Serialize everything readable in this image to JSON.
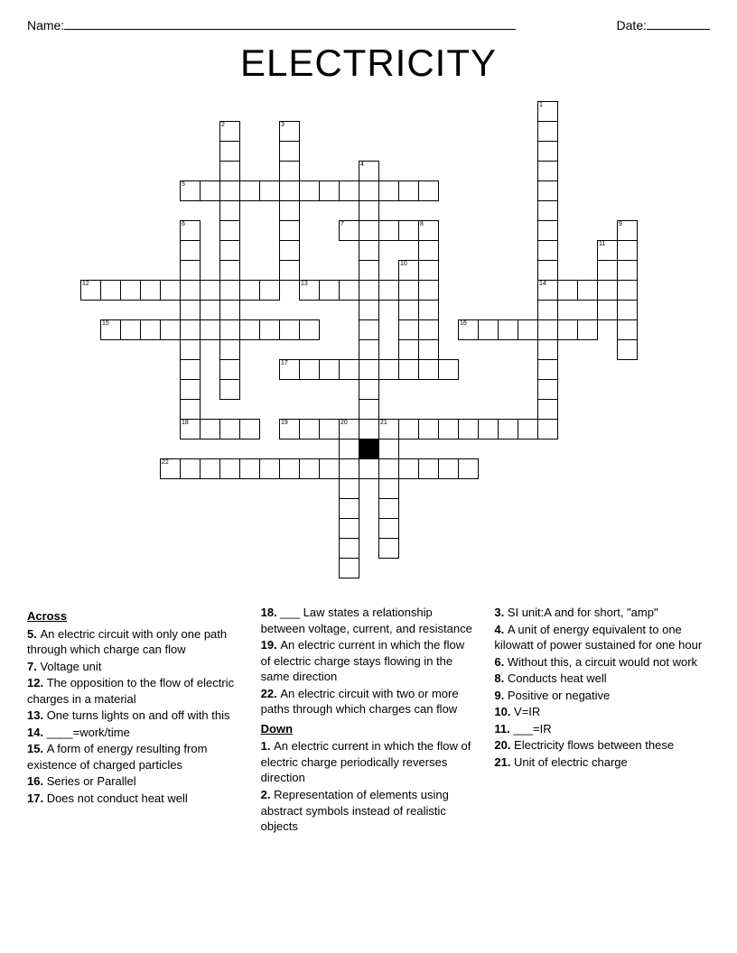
{
  "header": {
    "name_label": "Name:",
    "date_label": "Date:",
    "name_line_width": 500,
    "date_line_width": 70
  },
  "title": "ELECTRICITY",
  "grid": {
    "cell_size": 22,
    "cols": 31,
    "rows": 24,
    "cells": [
      {
        "r": 0,
        "c": 24,
        "n": "1"
      },
      {
        "r": 1,
        "c": 8,
        "n": "2"
      },
      {
        "r": 1,
        "c": 11,
        "n": "3"
      },
      {
        "r": 1,
        "c": 24
      },
      {
        "r": 2,
        "c": 8
      },
      {
        "r": 2,
        "c": 11
      },
      {
        "r": 2,
        "c": 24
      },
      {
        "r": 3,
        "c": 8
      },
      {
        "r": 3,
        "c": 11
      },
      {
        "r": 3,
        "c": 15,
        "n": "4"
      },
      {
        "r": 3,
        "c": 24
      },
      {
        "r": 4,
        "c": 6,
        "n": "5"
      },
      {
        "r": 4,
        "c": 7
      },
      {
        "r": 4,
        "c": 8
      },
      {
        "r": 4,
        "c": 9
      },
      {
        "r": 4,
        "c": 10
      },
      {
        "r": 4,
        "c": 11
      },
      {
        "r": 4,
        "c": 12
      },
      {
        "r": 4,
        "c": 13
      },
      {
        "r": 4,
        "c": 14
      },
      {
        "r": 4,
        "c": 15
      },
      {
        "r": 4,
        "c": 16
      },
      {
        "r": 4,
        "c": 17
      },
      {
        "r": 4,
        "c": 18
      },
      {
        "r": 4,
        "c": 24
      },
      {
        "r": 5,
        "c": 8
      },
      {
        "r": 5,
        "c": 11
      },
      {
        "r": 5,
        "c": 15
      },
      {
        "r": 5,
        "c": 24
      },
      {
        "r": 6,
        "c": 6,
        "n": "6"
      },
      {
        "r": 6,
        "c": 8
      },
      {
        "r": 6,
        "c": 11
      },
      {
        "r": 6,
        "c": 14,
        "n": "7"
      },
      {
        "r": 6,
        "c": 15
      },
      {
        "r": 6,
        "c": 16
      },
      {
        "r": 6,
        "c": 17
      },
      {
        "r": 6,
        "c": 18,
        "n": "8"
      },
      {
        "r": 6,
        "c": 24
      },
      {
        "r": 6,
        "c": 28,
        "n": "9"
      },
      {
        "r": 7,
        "c": 6
      },
      {
        "r": 7,
        "c": 8
      },
      {
        "r": 7,
        "c": 11
      },
      {
        "r": 7,
        "c": 15
      },
      {
        "r": 7,
        "c": 18
      },
      {
        "r": 7,
        "c": 24
      },
      {
        "r": 7,
        "c": 27,
        "n": "11"
      },
      {
        "r": 7,
        "c": 28
      },
      {
        "r": 8,
        "c": 6
      },
      {
        "r": 8,
        "c": 8
      },
      {
        "r": 8,
        "c": 11
      },
      {
        "r": 8,
        "c": 15
      },
      {
        "r": 8,
        "c": 17,
        "n": "10"
      },
      {
        "r": 8,
        "c": 18
      },
      {
        "r": 8,
        "c": 24
      },
      {
        "r": 8,
        "c": 27
      },
      {
        "r": 8,
        "c": 28
      },
      {
        "r": 9,
        "c": 1,
        "n": "12"
      },
      {
        "r": 9,
        "c": 2
      },
      {
        "r": 9,
        "c": 3
      },
      {
        "r": 9,
        "c": 4
      },
      {
        "r": 9,
        "c": 5
      },
      {
        "r": 9,
        "c": 6
      },
      {
        "r": 9,
        "c": 7
      },
      {
        "r": 9,
        "c": 8
      },
      {
        "r": 9,
        "c": 9
      },
      {
        "r": 9,
        "c": 10
      },
      {
        "r": 9,
        "c": 12,
        "n": "13"
      },
      {
        "r": 9,
        "c": 13
      },
      {
        "r": 9,
        "c": 14
      },
      {
        "r": 9,
        "c": 15
      },
      {
        "r": 9,
        "c": 16
      },
      {
        "r": 9,
        "c": 17
      },
      {
        "r": 9,
        "c": 18
      },
      {
        "r": 9,
        "c": 24,
        "n": "14"
      },
      {
        "r": 9,
        "c": 25
      },
      {
        "r": 9,
        "c": 26
      },
      {
        "r": 9,
        "c": 27
      },
      {
        "r": 9,
        "c": 28
      },
      {
        "r": 10,
        "c": 6
      },
      {
        "r": 10,
        "c": 8
      },
      {
        "r": 10,
        "c": 15
      },
      {
        "r": 10,
        "c": 17
      },
      {
        "r": 10,
        "c": 18
      },
      {
        "r": 10,
        "c": 24
      },
      {
        "r": 10,
        "c": 27
      },
      {
        "r": 10,
        "c": 28
      },
      {
        "r": 11,
        "c": 2,
        "n": "15"
      },
      {
        "r": 11,
        "c": 3
      },
      {
        "r": 11,
        "c": 4
      },
      {
        "r": 11,
        "c": 5
      },
      {
        "r": 11,
        "c": 6
      },
      {
        "r": 11,
        "c": 7
      },
      {
        "r": 11,
        "c": 8
      },
      {
        "r": 11,
        "c": 9
      },
      {
        "r": 11,
        "c": 10
      },
      {
        "r": 11,
        "c": 11
      },
      {
        "r": 11,
        "c": 12
      },
      {
        "r": 11,
        "c": 15
      },
      {
        "r": 11,
        "c": 17
      },
      {
        "r": 11,
        "c": 18
      },
      {
        "r": 11,
        "c": 20,
        "n": "16"
      },
      {
        "r": 11,
        "c": 21
      },
      {
        "r": 11,
        "c": 22
      },
      {
        "r": 11,
        "c": 23
      },
      {
        "r": 11,
        "c": 24
      },
      {
        "r": 11,
        "c": 25
      },
      {
        "r": 11,
        "c": 26
      },
      {
        "r": 11,
        "c": 28
      },
      {
        "r": 12,
        "c": 6
      },
      {
        "r": 12,
        "c": 8
      },
      {
        "r": 12,
        "c": 15
      },
      {
        "r": 12,
        "c": 17
      },
      {
        "r": 12,
        "c": 18
      },
      {
        "r": 12,
        "c": 24
      },
      {
        "r": 12,
        "c": 28
      },
      {
        "r": 13,
        "c": 6
      },
      {
        "r": 13,
        "c": 8
      },
      {
        "r": 13,
        "c": 11,
        "n": "17"
      },
      {
        "r": 13,
        "c": 12
      },
      {
        "r": 13,
        "c": 13
      },
      {
        "r": 13,
        "c": 14
      },
      {
        "r": 13,
        "c": 15
      },
      {
        "r": 13,
        "c": 16
      },
      {
        "r": 13,
        "c": 17
      },
      {
        "r": 13,
        "c": 18
      },
      {
        "r": 13,
        "c": 19
      },
      {
        "r": 13,
        "c": 24
      },
      {
        "r": 14,
        "c": 6
      },
      {
        "r": 14,
        "c": 8
      },
      {
        "r": 14,
        "c": 15
      },
      {
        "r": 14,
        "c": 24
      },
      {
        "r": 15,
        "c": 6
      },
      {
        "r": 15,
        "c": 15
      },
      {
        "r": 15,
        "c": 24
      },
      {
        "r": 16,
        "c": 6,
        "n": "18"
      },
      {
        "r": 16,
        "c": 7
      },
      {
        "r": 16,
        "c": 8
      },
      {
        "r": 16,
        "c": 9
      },
      {
        "r": 16,
        "c": 11,
        "n": "19"
      },
      {
        "r": 16,
        "c": 12
      },
      {
        "r": 16,
        "c": 13
      },
      {
        "r": 16,
        "c": 14,
        "n": "20"
      },
      {
        "r": 16,
        "c": 15
      },
      {
        "r": 16,
        "c": 16,
        "n": "21"
      },
      {
        "r": 16,
        "c": 17
      },
      {
        "r": 16,
        "c": 18
      },
      {
        "r": 16,
        "c": 19
      },
      {
        "r": 16,
        "c": 20
      },
      {
        "r": 16,
        "c": 21
      },
      {
        "r": 16,
        "c": 22
      },
      {
        "r": 16,
        "c": 23
      },
      {
        "r": 16,
        "c": 24
      },
      {
        "r": 17,
        "c": 14
      },
      {
        "r": 17,
        "c": 15,
        "black": true
      },
      {
        "r": 17,
        "c": 16
      },
      {
        "r": 18,
        "c": 5,
        "n": "22"
      },
      {
        "r": 18,
        "c": 6
      },
      {
        "r": 18,
        "c": 7
      },
      {
        "r": 18,
        "c": 8
      },
      {
        "r": 18,
        "c": 9
      },
      {
        "r": 18,
        "c": 10
      },
      {
        "r": 18,
        "c": 11
      },
      {
        "r": 18,
        "c": 12
      },
      {
        "r": 18,
        "c": 13
      },
      {
        "r": 18,
        "c": 14
      },
      {
        "r": 18,
        "c": 15
      },
      {
        "r": 18,
        "c": 16
      },
      {
        "r": 18,
        "c": 17
      },
      {
        "r": 18,
        "c": 18
      },
      {
        "r": 18,
        "c": 19
      },
      {
        "r": 18,
        "c": 20
      },
      {
        "r": 19,
        "c": 14
      },
      {
        "r": 19,
        "c": 16
      },
      {
        "r": 20,
        "c": 14
      },
      {
        "r": 20,
        "c": 16
      },
      {
        "r": 21,
        "c": 14
      },
      {
        "r": 21,
        "c": 16
      },
      {
        "r": 22,
        "c": 14
      },
      {
        "r": 22,
        "c": 16
      },
      {
        "r": 23,
        "c": 14
      }
    ]
  },
  "clues": {
    "across_heading": "Across",
    "down_heading": "Down",
    "columns": [
      [
        {
          "type": "heading",
          "key": "across_heading"
        },
        {
          "n": "5.",
          "t": "An electric circuit with only one path through which charge can flow"
        },
        {
          "n": "7.",
          "t": "Voltage unit"
        },
        {
          "n": "12.",
          "t": "The opposition to the flow of electric charges in a material"
        },
        {
          "n": "13.",
          "t": "One turns lights on and off with this"
        },
        {
          "n": "14.",
          "t": "____=work/time"
        },
        {
          "n": "15.",
          "t": "A form of energy resulting from existence of charged particles"
        },
        {
          "n": "16.",
          "t": "Series or Parallel"
        },
        {
          "n": "17.",
          "t": "Does not conduct heat well"
        }
      ],
      [
        {
          "n": "18.",
          "t": "___ Law states a relationship between voltage, current, and resistance"
        },
        {
          "n": "19.",
          "t": "An electric current in which the flow of electric charge stays flowing in the same direction"
        },
        {
          "n": "22.",
          "t": "An electric circuit with two or more paths through which charges can flow"
        },
        {
          "type": "heading",
          "key": "down_heading"
        },
        {
          "n": "1.",
          "t": "An electric current in which the flow of electric charge periodically reverses direction"
        },
        {
          "n": "2.",
          "t": "Representation of elements using abstract symbols instead of realistic objects"
        }
      ],
      [
        {
          "n": "3.",
          "t": "SI unit:A and for short, \"amp\""
        },
        {
          "n": "4.",
          "t": "A unit of energy equivalent to one kilowatt of power sustained for one hour"
        },
        {
          "n": "6.",
          "t": "Without this, a circuit would not work"
        },
        {
          "n": "8.",
          "t": "Conducts heat well"
        },
        {
          "n": "9.",
          "t": "Positive or negative"
        },
        {
          "n": "10.",
          "t": "V=IR"
        },
        {
          "n": "11.",
          "t": "___=IR"
        },
        {
          "n": "20.",
          "t": "Electricity flows between these"
        },
        {
          "n": "21.",
          "t": "Unit of electric charge"
        }
      ]
    ]
  }
}
